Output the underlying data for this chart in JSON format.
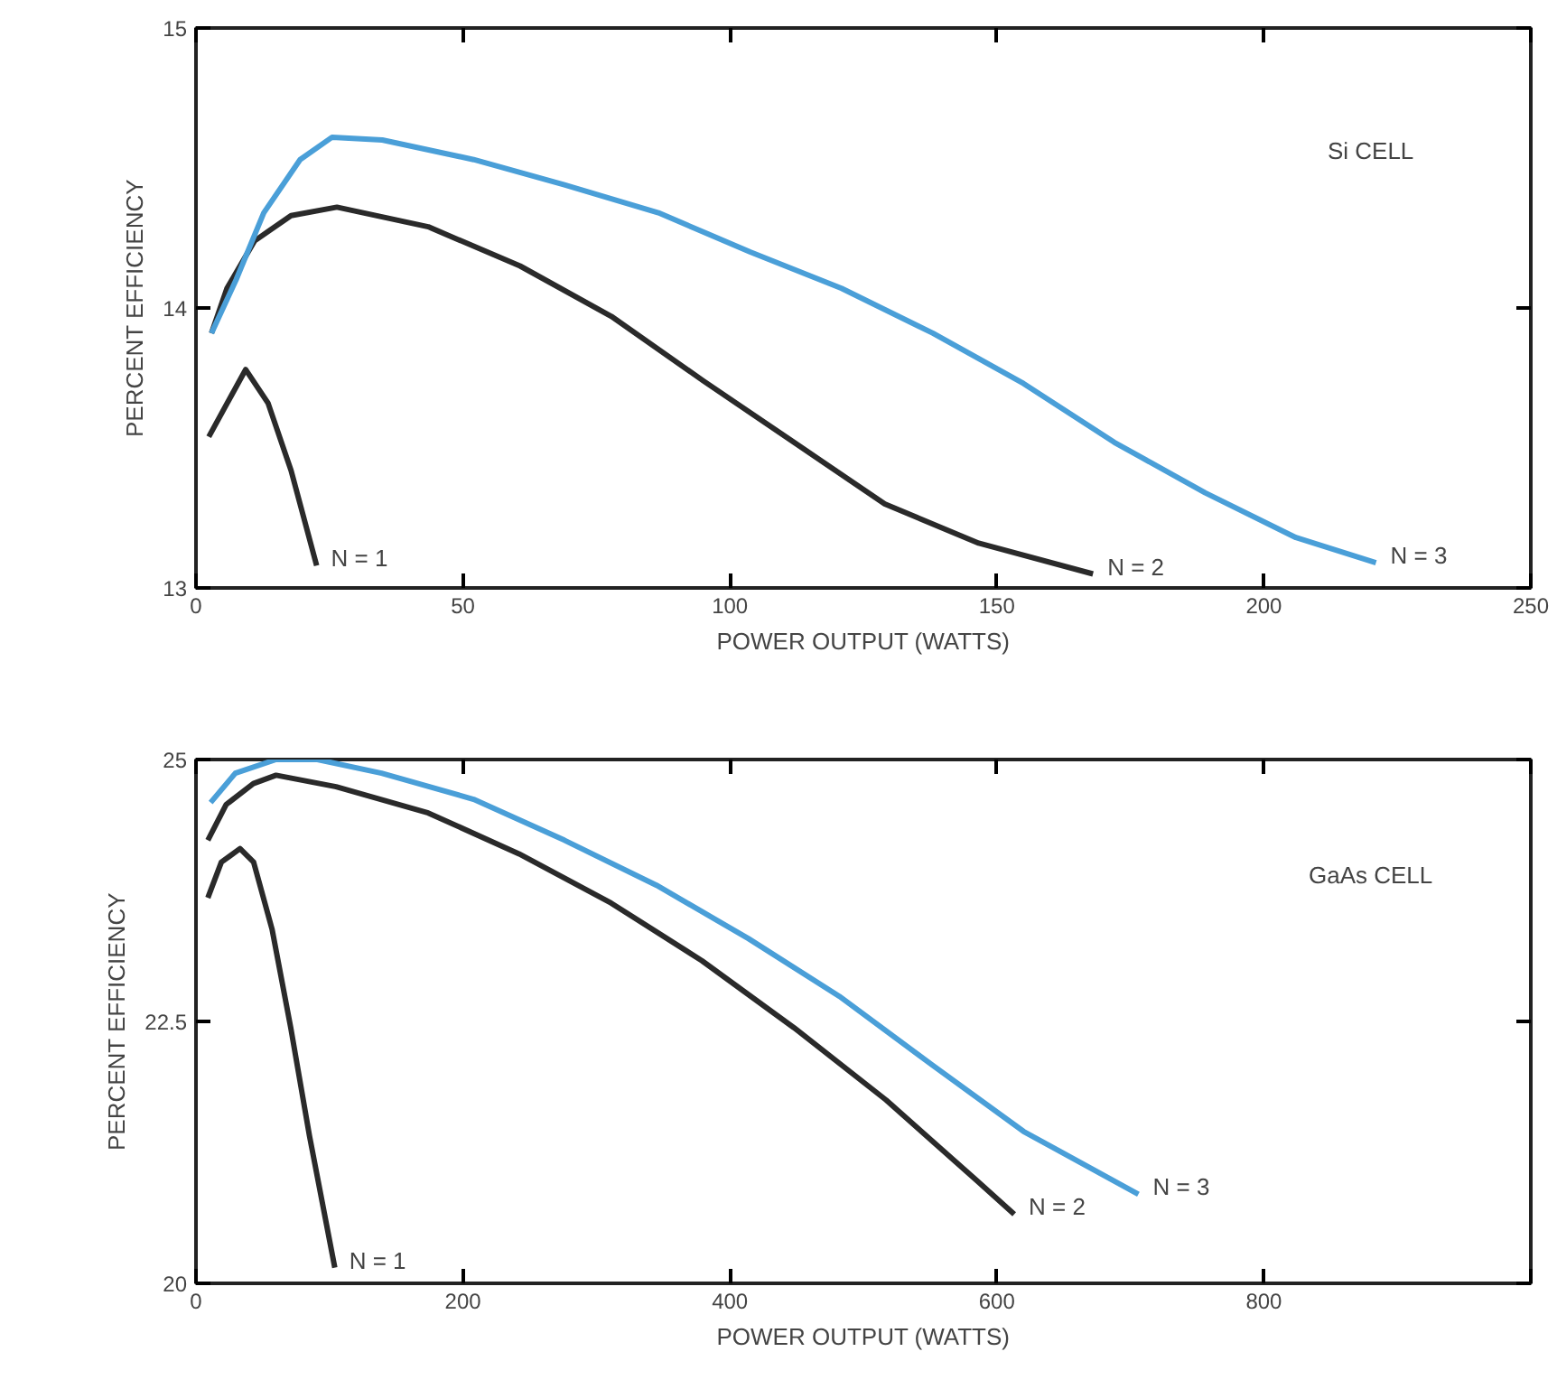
{
  "chart_data": [
    {
      "type": "line",
      "xlabel": "POWER OUTPUT (WATTS)",
      "ylabel": "PERCENT EFFICIENCY",
      "xlim": [
        0,
        250
      ],
      "xticks": [
        0,
        50,
        100,
        150,
        200,
        250
      ],
      "ylim": [
        13,
        15
      ],
      "yticks": [
        13,
        14,
        15
      ],
      "grid": false,
      "annotations": [
        "Si CELL"
      ],
      "series": [
        {
          "name": "N = 1",
          "color": "#2a2a2a",
          "x": [
            2.4,
            9.3,
            13.5,
            17.8,
            22.6
          ],
          "values": [
            13.54,
            13.78,
            13.66,
            13.42,
            13.08
          ]
        },
        {
          "name": "N = 2",
          "color": "#2a2a2a",
          "x": [
            2.9,
            5.8,
            11,
            17.8,
            26.4,
            43.5,
            60.7,
            77.8,
            95,
            112,
            129,
            146.6,
            168
          ],
          "values": [
            13.91,
            14.07,
            14.24,
            14.33,
            14.36,
            14.29,
            14.15,
            13.97,
            13.74,
            13.52,
            13.3,
            13.16,
            13.05
          ]
        },
        {
          "name": "N = 3",
          "color": "#4a9fd8",
          "x": [
            2.9,
            7.5,
            12.7,
            19.5,
            25.5,
            34.9,
            52,
            69,
            86.6,
            103.8,
            120.9,
            138,
            155,
            172,
            189,
            206,
            221
          ],
          "values": [
            13.91,
            14.1,
            14.34,
            14.53,
            14.61,
            14.6,
            14.53,
            14.44,
            14.34,
            14.2,
            14.07,
            13.91,
            13.73,
            13.52,
            13.34,
            13.18,
            13.09
          ]
        }
      ]
    },
    {
      "type": "line",
      "xlabel": "POWER OUTPUT (WATTS)",
      "ylabel": "PERCENT EFFICIENCY",
      "xlim": [
        0,
        1000
      ],
      "xticks": [
        0,
        200,
        400,
        600,
        800,
        {
          "value": 1000,
          "label": null
        }
      ],
      "ylim": [
        20,
        25
      ],
      "yticks": [
        20,
        22.5,
        25
      ],
      "grid": false,
      "annotations": [
        "GaAs CELL"
      ],
      "series": [
        {
          "name": "N = 1",
          "color": "#2a2a2a",
          "x": [
            8.9,
            19,
            33,
            43.2,
            57,
            71,
            85,
            104
          ],
          "values": [
            23.68,
            24.02,
            24.15,
            24.02,
            23.38,
            22.44,
            21.41,
            20.15
          ]
        },
        {
          "name": "N = 2",
          "color": "#2a2a2a",
          "x": [
            8.9,
            22.6,
            43,
            60,
            105,
            174,
            242,
            311,
            379,
            448,
            517,
            585,
            613
          ],
          "values": [
            24.23,
            24.57,
            24.77,
            24.85,
            24.74,
            24.49,
            24.1,
            23.63,
            23.08,
            22.44,
            21.75,
            20.98,
            20.66
          ]
        },
        {
          "name": "N = 3",
          "color": "#4a9fd8",
          "x": [
            11,
            29.5,
            60,
            91,
            139,
            208,
            276,
            345,
            414,
            482,
            551,
            620,
            706
          ],
          "values": [
            24.59,
            24.87,
            25.0,
            25.0,
            24.87,
            24.62,
            24.23,
            23.8,
            23.29,
            22.74,
            22.09,
            21.45,
            20.85
          ]
        }
      ]
    }
  ]
}
